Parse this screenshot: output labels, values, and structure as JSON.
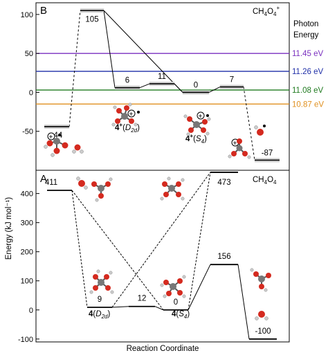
{
  "chart_data": [
    {
      "type": "energy-level-diagram",
      "panel_letter": "B",
      "species_label": "CH4O4+",
      "ylim": [
        -100,
        115
      ],
      "yticks": [
        -50,
        0,
        50,
        100
      ],
      "states": [
        {
          "value": -44,
          "label": "-44"
        },
        {
          "value": 105,
          "label": "105"
        },
        {
          "value": 6,
          "label": "6"
        },
        {
          "value": 11,
          "label": "11"
        },
        {
          "value": 0,
          "label": "0"
        },
        {
          "value": 7,
          "label": "7"
        },
        {
          "value": -87,
          "label": "-87"
        }
      ],
      "structure_labels": [
        "4+(D2d)",
        "4+(S4)"
      ],
      "photon_energy": {
        "title_line1": "Photon",
        "title_line2": "Energy",
        "lines": [
          {
            "label": "11.45 eV",
            "value": 50,
            "color": "#7a2fbf"
          },
          {
            "label": "11.26 eV",
            "value": 27,
            "color": "#1f2fa8"
          },
          {
            "label": "11.08 eV",
            "value": 3,
            "color": "#1f7a1f"
          },
          {
            "label": "10.87 eV",
            "value": -15,
            "color": "#e0901f"
          }
        ]
      }
    },
    {
      "type": "energy-level-diagram",
      "panel_letter": "A",
      "species_label": "CH4O4",
      "ylim": [
        -110,
        480
      ],
      "yticks": [
        -100,
        0,
        100,
        200,
        300,
        400
      ],
      "states": [
        {
          "value": 411,
          "label": "411"
        },
        {
          "value": 9,
          "label": "9"
        },
        {
          "value": 12,
          "label": "12"
        },
        {
          "value": 0,
          "label": "0"
        },
        {
          "value": 473,
          "label": "473"
        },
        {
          "value": 156,
          "label": "156"
        },
        {
          "value": -100,
          "label": "-100"
        }
      ],
      "structure_labels": [
        "4(D2d)",
        "4(S4)"
      ]
    }
  ],
  "shared_ylabel": "Energy (kJ mol⁻¹)",
  "shared_xlabel": "Reaction Coordinate"
}
